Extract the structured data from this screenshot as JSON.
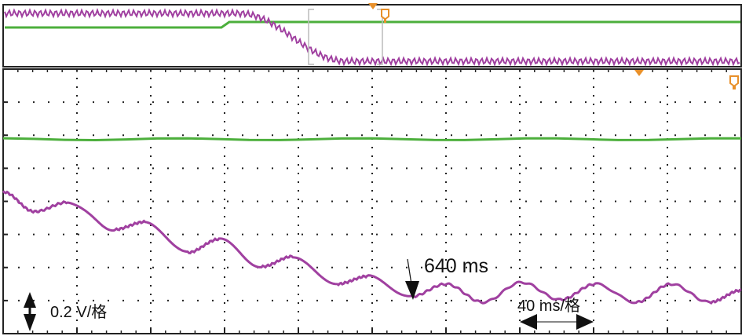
{
  "chart_data": {
    "type": "line",
    "title": "",
    "xlabel": "",
    "ylabel": "",
    "x_unit": "ms",
    "y_unit": "V",
    "xlim": [
      0,
      400
    ],
    "ylim": [
      0,
      1.6
    ],
    "grid": true,
    "x_divisions": 10,
    "y_divisions": 8,
    "series": [
      {
        "color": "#a040a0",
        "points": [
          [
            0,
            0.857
          ],
          [
            17,
            0.738
          ],
          [
            35,
            0.795
          ],
          [
            60,
            0.629
          ],
          [
            77,
            0.676
          ],
          [
            100,
            0.49
          ],
          [
            117,
            0.571
          ],
          [
            140,
            0.405
          ],
          [
            157,
            0.467
          ],
          [
            181,
            0.3
          ],
          [
            198,
            0.348
          ],
          [
            221,
            0.224
          ],
          [
            240,
            0.3
          ],
          [
            260,
            0.19
          ],
          [
            281,
            0.31
          ],
          [
            302,
            0.205
          ],
          [
            321,
            0.3
          ],
          [
            343,
            0.19
          ],
          [
            362,
            0.3
          ],
          [
            383,
            0.19
          ],
          [
            400,
            0.262
          ]
        ]
      },
      {
        "color": "#4caf3c",
        "points": [
          [
            0,
            1.176
          ],
          [
            400,
            1.176
          ]
        ]
      }
    ],
    "annotations": {
      "time_marker": "640 ms",
      "time_marker_at": [
        221,
        0.224
      ],
      "vertical_scale": "0.2 V/格",
      "horizontal_scale": "40 ms/格"
    }
  },
  "colors": {
    "purple_trace": "#a040a0",
    "green_trace": "#4caf3c",
    "marker": "#e8902a",
    "grid": "#222222"
  }
}
